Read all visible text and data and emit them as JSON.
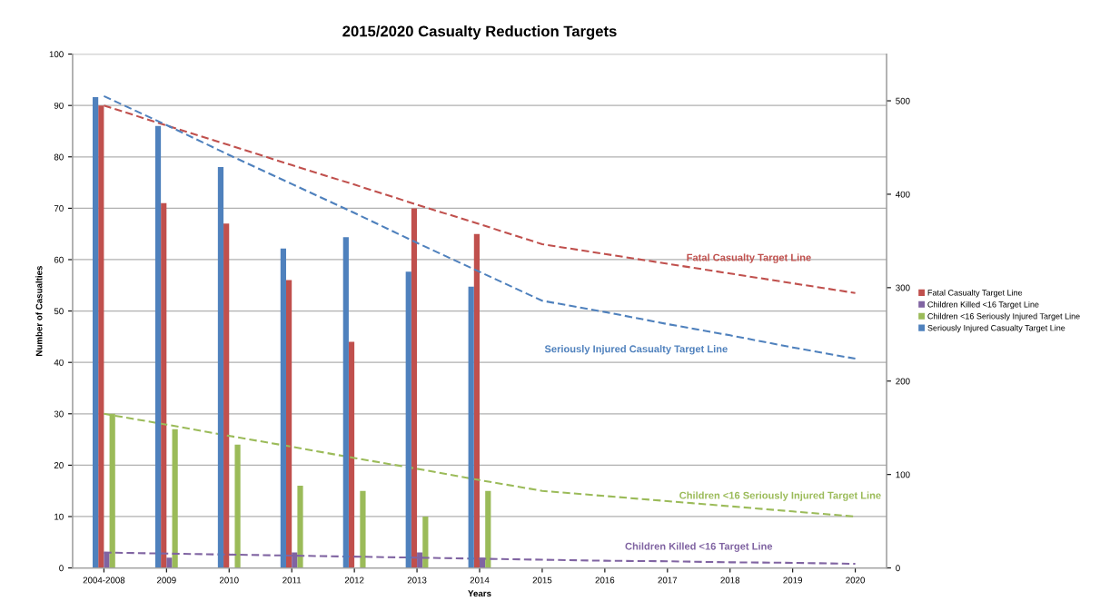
{
  "chart_data": {
    "type": "bar",
    "title": "2015/2020 Casualty Reduction Targets",
    "xlabel": "Years",
    "ylabel": "Number of Casualties",
    "categories": [
      "2004-2008",
      "2009",
      "2010",
      "2011",
      "2012",
      "2013",
      "2014",
      "2015",
      "2016",
      "2017",
      "2018",
      "2019",
      "2020"
    ],
    "series": [
      {
        "name": "Seriously Injured Casualty Target Line",
        "color": "#4f81bd",
        "axis": "y2",
        "values": [
          504,
          473,
          429,
          342,
          354,
          317,
          301,
          null,
          null,
          null,
          null,
          null,
          null
        ]
      },
      {
        "name": "Fatal Casualty Target Line",
        "color": "#c0504d",
        "values": [
          90,
          71,
          67,
          56,
          44,
          70,
          65,
          null,
          null,
          null,
          null,
          null,
          null
        ]
      },
      {
        "name": "Children Killed <16 Target Line",
        "color": "#8064a2",
        "values": [
          3,
          2,
          0,
          3,
          0,
          3,
          2,
          null,
          null,
          null,
          null,
          null,
          null
        ]
      },
      {
        "name": "Children <16 Seriously Injured Target Line",
        "color": "#9bbb59",
        "values": [
          30,
          27,
          24,
          16,
          15,
          10,
          15,
          null,
          null,
          null,
          null,
          null,
          null
        ]
      },
      {
        "type": "line",
        "name": "Fatal Casualty Target Line",
        "color": "#c0504d",
        "line_style": "dashed",
        "values": [
          90,
          86.1,
          82.3,
          78.4,
          74.6,
          70.7,
          66.9,
          63,
          61.1,
          59.2,
          57.3,
          55.4,
          53.5
        ]
      },
      {
        "type": "line",
        "name": "Seriously Injured Casualty Target Line",
        "color": "#4f81bd",
        "axis": "y2",
        "line_style": "dashed",
        "values": [
          505,
          474,
          442,
          411,
          380,
          348,
          317,
          286,
          274,
          261,
          249,
          236,
          224
        ]
      },
      {
        "type": "line",
        "name": "Children <16 Seriously Injured Target Line",
        "color": "#9bbb59",
        "line_style": "dashed",
        "values": [
          30,
          27.9,
          25.7,
          23.6,
          21.4,
          19.3,
          17.1,
          15,
          14,
          13,
          12,
          11,
          10
        ]
      },
      {
        "type": "line",
        "name": "Children Killed <16 Target Line",
        "color": "#8064a2",
        "line_style": "dashed",
        "values": [
          3,
          2.8,
          2.6,
          2.4,
          2.2,
          2.0,
          1.8,
          1.6,
          1.4,
          1.3,
          1.1,
          1.0,
          0.8
        ]
      }
    ],
    "ylim": [
      0,
      100
    ],
    "yticks": [
      0,
      10,
      20,
      30,
      40,
      50,
      60,
      70,
      80,
      90,
      100
    ],
    "y2lim": [
      0,
      550
    ],
    "y2ticks": [
      0,
      100,
      200,
      300,
      400,
      500
    ],
    "grid": "y",
    "legend": "right"
  }
}
